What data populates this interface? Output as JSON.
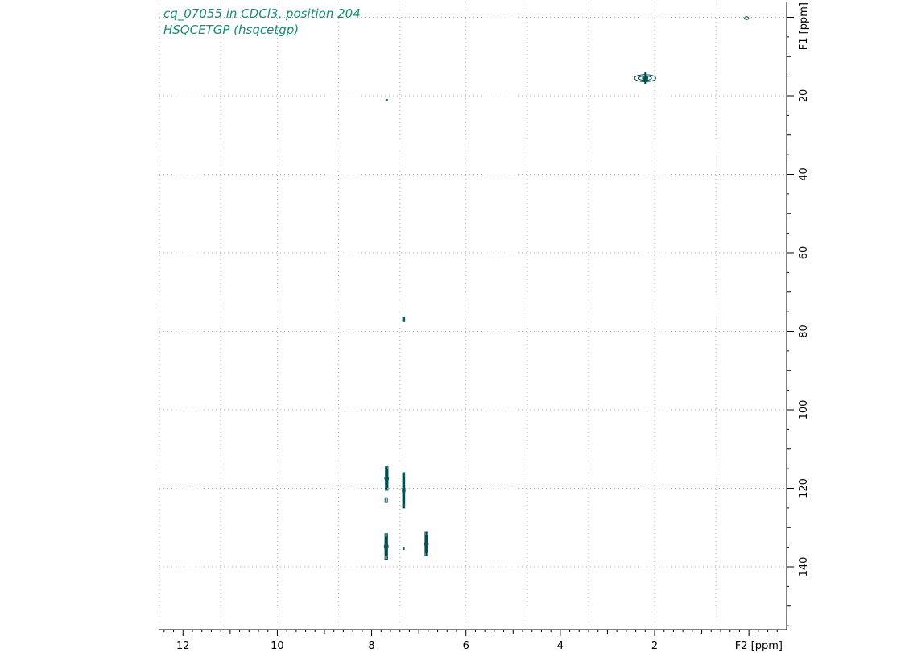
{
  "chart_data": {
    "type": "scatter",
    "title_lines": [
      "cq_07055 in CDCl3, position 204",
      "HSQCETGP (hsqcetgp)"
    ],
    "xlabel": "F2 [ppm]",
    "ylabel": "F1 [ppm]",
    "xlim": [
      12.5,
      -0.8
    ],
    "ylim": [
      -4,
      156
    ],
    "x_ticks": [
      12,
      10,
      8,
      6,
      4,
      2
    ],
    "y_ticks": [
      20,
      40,
      60,
      80,
      100,
      120,
      140
    ],
    "grid_x": [
      12.5,
      11.2,
      10,
      8.7,
      7.4,
      6,
      4.7,
      3.4,
      2,
      0.7
    ],
    "grid_y": [
      0,
      20,
      40,
      60,
      80,
      100,
      120,
      140
    ],
    "grid": true,
    "colors": {
      "contour": "#004b4b",
      "contour_fill": "#0f5a5a",
      "title": "#1a8a7a",
      "grid": "#aaaaaa"
    },
    "peaks": [
      {
        "f2": 0.05,
        "f1": 0.2,
        "w": 0.05,
        "h": 0.5,
        "style": "tiny"
      },
      {
        "f2": 2.2,
        "f1": 15.5,
        "w": 0.45,
        "h": 1.6,
        "style": "horizontal"
      },
      {
        "f2": 7.68,
        "f1": 21.1,
        "w": 0.05,
        "h": 0.5,
        "style": "dot"
      },
      {
        "f2": 7.32,
        "f1": 77.0,
        "w": 0.06,
        "h": 1.2,
        "style": "dot"
      },
      {
        "f2": 7.68,
        "f1": 117.5,
        "w": 0.1,
        "h": 6.0,
        "style": "vertical"
      },
      {
        "f2": 7.69,
        "f1": 123.0,
        "w": 0.05,
        "h": 1.2,
        "style": "box"
      },
      {
        "f2": 7.32,
        "f1": 120.5,
        "w": 0.08,
        "h": 9.0,
        "style": "vertical"
      },
      {
        "f2": 7.69,
        "f1": 134.8,
        "w": 0.1,
        "h": 6.5,
        "style": "vertical"
      },
      {
        "f2": 7.32,
        "f1": 135.3,
        "w": 0.04,
        "h": 0.8,
        "style": "dot"
      },
      {
        "f2": 6.84,
        "f1": 134.2,
        "w": 0.1,
        "h": 6.0,
        "style": "vertical"
      }
    ]
  }
}
